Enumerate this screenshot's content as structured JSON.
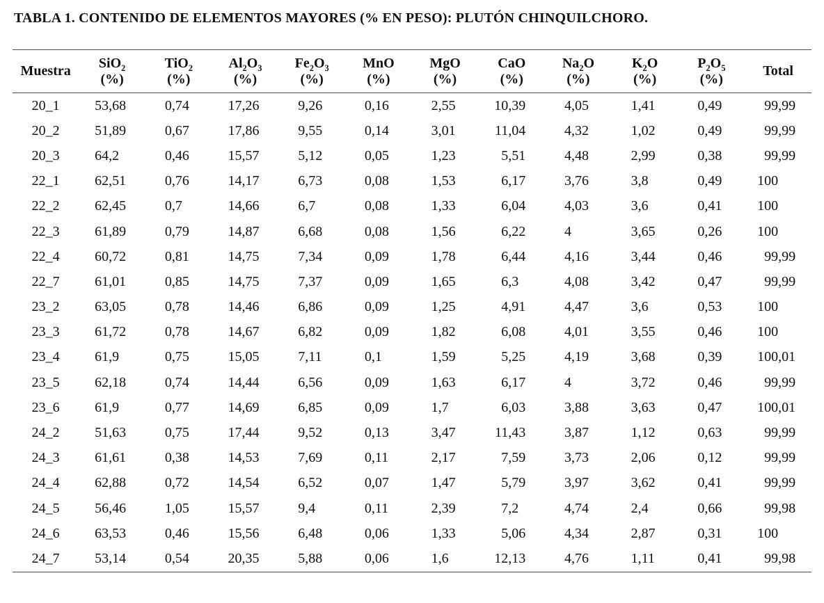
{
  "title": "TABLA 1. CONTENIDO DE ELEMENTOS MAYORES (% EN PESO): PLUTÓN CHINQUILCHORO.",
  "table": {
    "columns": [
      {
        "key": "muestra",
        "label": "Muestra",
        "unit": "",
        "chem": false
      },
      {
        "key": "sio2",
        "label": "SiO2",
        "unit": "(%)",
        "chem": true
      },
      {
        "key": "tio2",
        "label": "TiO2",
        "unit": "(%)",
        "chem": true
      },
      {
        "key": "al2o3",
        "label": "Al2O3",
        "unit": "(%)",
        "chem": true
      },
      {
        "key": "fe2o3",
        "label": "Fe2O3",
        "unit": "(%)",
        "chem": true
      },
      {
        "key": "mno",
        "label": "MnO",
        "unit": "(%)",
        "chem": true
      },
      {
        "key": "mgo",
        "label": "MgO",
        "unit": "(%)",
        "chem": true
      },
      {
        "key": "cao",
        "label": "CaO",
        "unit": "(%)",
        "chem": true
      },
      {
        "key": "na2o",
        "label": "Na2O",
        "unit": "(%)",
        "chem": true
      },
      {
        "key": "k2o",
        "label": "K2O",
        "unit": "(%)",
        "chem": true
      },
      {
        "key": "p2o5",
        "label": "P2O5",
        "unit": "(%)",
        "chem": true
      },
      {
        "key": "total",
        "label": "Total",
        "unit": "",
        "chem": false
      }
    ],
    "rows": [
      [
        "20_1",
        "53,68",
        "0,74",
        "17,26",
        "9,26",
        "0,16",
        "2,55",
        "10,39",
        "4,05",
        "1,41",
        "0,49",
        "99,99"
      ],
      [
        "20_2",
        "51,89",
        "0,67",
        "17,86",
        "9,55",
        "0,14",
        "3,01",
        "11,04",
        "4,32",
        "1,02",
        "0,49",
        "99,99"
      ],
      [
        "20_3",
        "64,2",
        "0,46",
        "15,57",
        "5,12",
        "0,05",
        "1,23",
        "5,51",
        "4,48",
        "2,99",
        "0,38",
        "99,99"
      ],
      [
        "22_1",
        "62,51",
        "0,76",
        "14,17",
        "6,73",
        "0,08",
        "1,53",
        "6,17",
        "3,76",
        "3,8",
        "0,49",
        "100"
      ],
      [
        "22_2",
        "62,45",
        "0,7",
        "14,66",
        "6,7",
        "0,08",
        "1,33",
        "6,04",
        "4,03",
        "3,6",
        "0,41",
        "100"
      ],
      [
        "22_3",
        "61,89",
        "0,79",
        "14,87",
        "6,68",
        "0,08",
        "1,56",
        "6,22",
        "4",
        "3,65",
        "0,26",
        "100"
      ],
      [
        "22_4",
        "60,72",
        "0,81",
        "14,75",
        "7,34",
        "0,09",
        "1,78",
        "6,44",
        "4,16",
        "3,44",
        "0,46",
        "99,99"
      ],
      [
        "22_7",
        "61,01",
        "0,85",
        "14,75",
        "7,37",
        "0,09",
        "1,65",
        "6,3",
        "4,08",
        "3,42",
        "0,47",
        "99,99"
      ],
      [
        "23_2",
        "63,05",
        "0,78",
        "14,46",
        "6,86",
        "0,09",
        "1,25",
        "4,91",
        "4,47",
        "3,6",
        "0,53",
        "100"
      ],
      [
        "23_3",
        "61,72",
        "0,78",
        "14,67",
        "6,82",
        "0,09",
        "1,82",
        "6,08",
        "4,01",
        "3,55",
        "0,46",
        "100"
      ],
      [
        "23_4",
        "61,9",
        "0,75",
        "15,05",
        "7,11",
        "0,1",
        "1,59",
        "5,25",
        "4,19",
        "3,68",
        "0,39",
        "100,01"
      ],
      [
        "23_5",
        "62,18",
        "0,74",
        "14,44",
        "6,56",
        "0,09",
        "1,63",
        "6,17",
        "4",
        "3,72",
        "0,46",
        "99,99"
      ],
      [
        "23_6",
        "61,9",
        "0,77",
        "14,69",
        "6,85",
        "0,09",
        "1,7",
        "6,03",
        "3,88",
        "3,63",
        "0,47",
        "100,01"
      ],
      [
        "24_2",
        "51,63",
        "0,75",
        "17,44",
        "9,52",
        "0,13",
        "3,47",
        "11,43",
        "3,87",
        "1,12",
        "0,63",
        "99,99"
      ],
      [
        "24_3",
        "61,61",
        "0,38",
        "14,53",
        "7,69",
        "0,11",
        "2,17",
        "7,59",
        "3,73",
        "2,06",
        "0,12",
        "99,99"
      ],
      [
        "24_4",
        "62,88",
        "0,72",
        "14,54",
        "6,52",
        "0,07",
        "1,47",
        "5,79",
        "3,97",
        "3,62",
        "0,41",
        "99,99"
      ],
      [
        "24_5",
        "56,46",
        "1,05",
        "15,57",
        "9,4",
        "0,11",
        "2,39",
        "7,2",
        "4,74",
        "2,4",
        "0,66",
        "99,98"
      ],
      [
        "24_6",
        "63,53",
        "0,46",
        "15,56",
        "6,48",
        "0,06",
        "1,33",
        "5,06",
        "4,34",
        "2,87",
        "0,31",
        "100"
      ],
      [
        "24_7",
        "53,14",
        "0,54",
        "20,35",
        "5,88",
        "0,06",
        "1,6",
        "12,13",
        "4,76",
        "1,11",
        "0,41",
        "99,98"
      ]
    ]
  }
}
